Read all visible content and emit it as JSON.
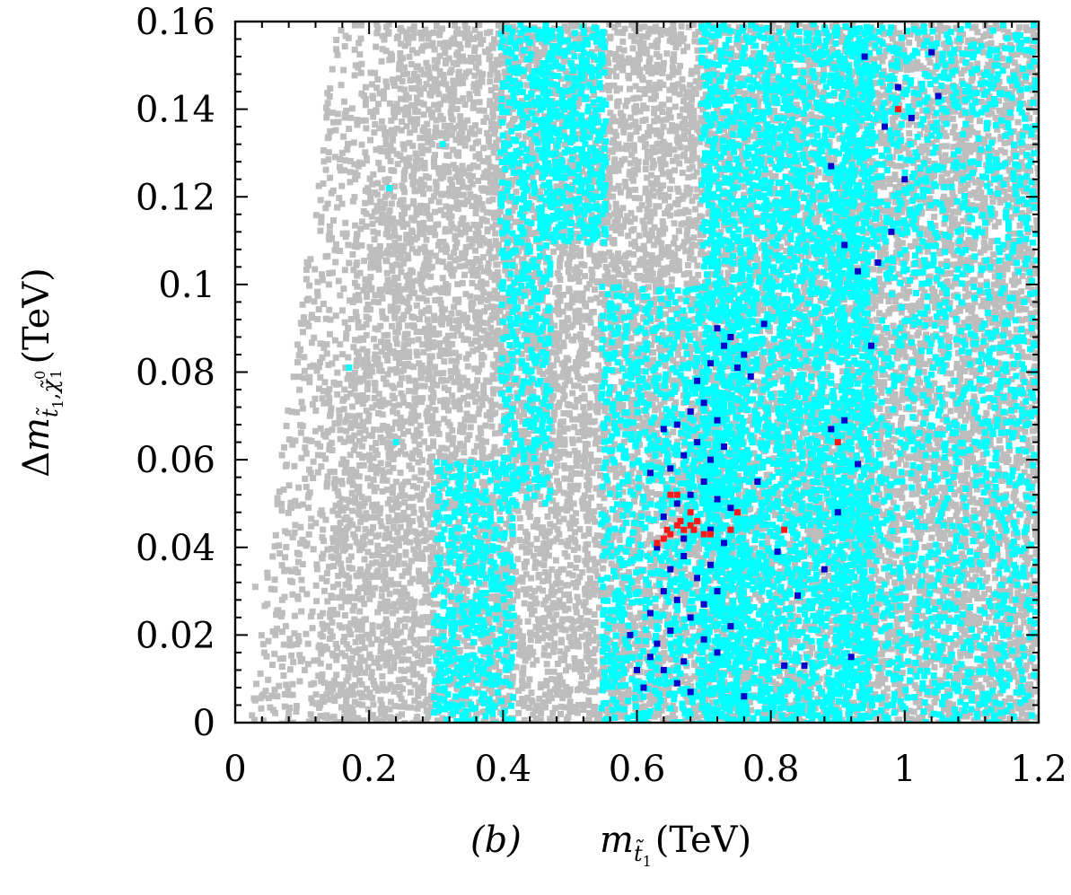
{
  "chart_data": {
    "type": "scatter",
    "panel_label": "(b)",
    "xlabel": "m_{t̃1} (TeV)",
    "ylabel": "Δm_{t̃1,χ̃⁰1} (TeV)",
    "xlim": [
      0,
      1.2
    ],
    "ylim": [
      0,
      0.16
    ],
    "x_ticks": [
      0,
      0.2,
      0.4,
      0.6,
      0.8,
      1.0,
      1.2
    ],
    "x_tick_labels": [
      "0",
      "0.2",
      "0.4",
      "0.6",
      "0.8",
      "1",
      "1.2"
    ],
    "y_ticks": [
      0,
      0.02,
      0.04,
      0.06,
      0.08,
      0.1,
      0.12,
      0.14,
      0.16
    ],
    "y_tick_labels": [
      "0",
      "0.02",
      "0.04",
      "0.06",
      "0.08",
      "0.1",
      "0.12",
      "0.14",
      "0.16"
    ],
    "grid": false,
    "legend": "none",
    "series": [
      {
        "color": "#bdbdbd",
        "regions": [
          {
            "x_min": 0.02,
            "x_max": 1.2,
            "y_min": 0,
            "y_max": 0.16,
            "density": 0.55,
            "left_edge": [
              [
                0.02,
                0.0
              ],
              [
                0.15,
                0.16
              ]
            ]
          }
        ],
        "points": [
          [
            0.03,
            0.031
          ],
          [
            0.06,
            0.02
          ],
          [
            0.04,
            0.006
          ],
          [
            0.09,
            0.035
          ],
          [
            0.11,
            0.052
          ],
          [
            0.13,
            0.074
          ],
          [
            0.14,
            0.1
          ],
          [
            0.16,
            0.13
          ],
          [
            0.18,
            0.15
          ],
          [
            0.22,
            0.064
          ],
          [
            0.26,
            0.045
          ],
          [
            0.3,
            0.03
          ],
          [
            0.33,
            0.011
          ]
        ]
      },
      {
        "color": "#00ffff",
        "regions": [
          {
            "x_min": 0.3,
            "x_max": 0.42,
            "y_min": 0,
            "y_max": 0.06,
            "density": 0.45
          },
          {
            "x_min": 0.4,
            "x_max": 0.47,
            "y_min": 0.05,
            "y_max": 0.16,
            "density": 0.4
          },
          {
            "x_min": 0.46,
            "x_max": 0.55,
            "y_min": 0.11,
            "y_max": 0.16,
            "density": 0.55
          },
          {
            "x_min": 0.55,
            "x_max": 0.76,
            "y_min": 0,
            "y_max": 0.1,
            "density": 0.35
          },
          {
            "x_min": 0.7,
            "x_max": 0.95,
            "y_min": 0,
            "y_max": 0.16,
            "density": 0.5
          },
          {
            "x_min": 0.9,
            "x_max": 1.2,
            "y_min": 0,
            "y_max": 0.16,
            "density": 0.25
          }
        ],
        "points": [
          [
            0.17,
            0.081
          ],
          [
            0.23,
            0.122
          ],
          [
            0.24,
            0.064
          ],
          [
            0.31,
            0.132
          ],
          [
            0.4,
            0.134
          ]
        ]
      },
      {
        "color": "#0000cc",
        "points": [
          [
            0.61,
            0.008
          ],
          [
            0.62,
            0.015
          ],
          [
            0.63,
            0.018
          ],
          [
            0.64,
            0.012
          ],
          [
            0.65,
            0.021
          ],
          [
            0.66,
            0.009
          ],
          [
            0.67,
            0.014
          ],
          [
            0.68,
            0.007
          ],
          [
            0.62,
            0.025
          ],
          [
            0.64,
            0.03
          ],
          [
            0.66,
            0.028
          ],
          [
            0.68,
            0.024
          ],
          [
            0.7,
            0.027
          ],
          [
            0.72,
            0.03
          ],
          [
            0.65,
            0.035
          ],
          [
            0.67,
            0.038
          ],
          [
            0.69,
            0.033
          ],
          [
            0.71,
            0.036
          ],
          [
            0.63,
            0.04
          ],
          [
            0.73,
            0.041
          ],
          [
            0.64,
            0.047
          ],
          [
            0.66,
            0.05
          ],
          [
            0.68,
            0.052
          ],
          [
            0.7,
            0.055
          ],
          [
            0.72,
            0.051
          ],
          [
            0.74,
            0.049
          ],
          [
            0.65,
            0.058
          ],
          [
            0.67,
            0.061
          ],
          [
            0.69,
            0.064
          ],
          [
            0.71,
            0.06
          ],
          [
            0.73,
            0.063
          ],
          [
            0.66,
            0.068
          ],
          [
            0.68,
            0.071
          ],
          [
            0.7,
            0.073
          ],
          [
            0.72,
            0.069
          ],
          [
            0.69,
            0.078
          ],
          [
            0.71,
            0.082
          ],
          [
            0.73,
            0.086
          ],
          [
            0.75,
            0.081
          ],
          [
            0.77,
            0.079
          ],
          [
            0.72,
            0.09
          ],
          [
            0.74,
            0.088
          ],
          [
            0.76,
            0.084
          ],
          [
            0.79,
            0.091
          ],
          [
            0.81,
            0.039
          ],
          [
            0.82,
            0.013
          ],
          [
            0.84,
            0.029
          ],
          [
            0.85,
            0.013
          ],
          [
            0.88,
            0.035
          ],
          [
            0.89,
            0.067
          ],
          [
            0.9,
            0.048
          ],
          [
            0.91,
            0.069
          ],
          [
            0.92,
            0.015
          ],
          [
            0.93,
            0.059
          ],
          [
            0.94,
            0.152
          ],
          [
            0.95,
            0.086
          ],
          [
            0.96,
            0.105
          ],
          [
            0.97,
            0.136
          ],
          [
            0.98,
            0.112
          ],
          [
            0.99,
            0.145
          ],
          [
            1.0,
            0.124
          ],
          [
            1.01,
            0.138
          ],
          [
            1.04,
            0.153
          ],
          [
            1.05,
            0.143
          ],
          [
            0.89,
            0.127
          ],
          [
            0.91,
            0.109
          ],
          [
            0.93,
            0.103
          ],
          [
            0.59,
            0.02
          ],
          [
            0.6,
            0.012
          ],
          [
            0.71,
            0.044
          ],
          [
            0.67,
            0.042
          ],
          [
            0.7,
            0.019
          ],
          [
            0.72,
            0.016
          ],
          [
            0.74,
            0.022
          ],
          [
            0.76,
            0.006
          ],
          [
            0.64,
            0.067
          ],
          [
            0.62,
            0.057
          ],
          [
            0.78,
            0.055
          ]
        ]
      },
      {
        "color": "#ff1a1a",
        "points": [
          [
            0.63,
            0.041
          ],
          [
            0.64,
            0.042
          ],
          [
            0.645,
            0.044
          ],
          [
            0.65,
            0.043
          ],
          [
            0.66,
            0.045
          ],
          [
            0.665,
            0.046
          ],
          [
            0.67,
            0.044
          ],
          [
            0.68,
            0.045
          ],
          [
            0.685,
            0.044
          ],
          [
            0.69,
            0.046
          ],
          [
            0.7,
            0.043
          ],
          [
            0.71,
            0.043
          ],
          [
            0.65,
            0.052
          ],
          [
            0.66,
            0.052
          ],
          [
            0.68,
            0.048
          ],
          [
            0.74,
            0.044
          ],
          [
            0.75,
            0.048
          ],
          [
            0.82,
            0.044
          ],
          [
            0.9,
            0.064
          ],
          [
            0.99,
            0.14
          ]
        ]
      }
    ]
  }
}
